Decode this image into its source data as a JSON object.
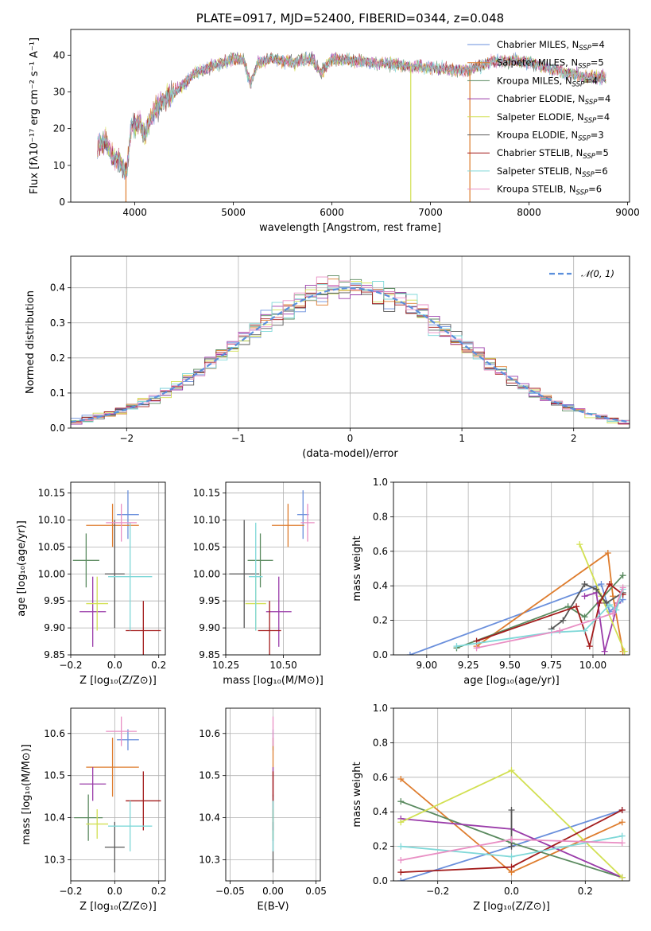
{
  "colors": [
    "#6a8fdc",
    "#de7c2d",
    "#5a8a5f",
    "#9a3ba9",
    "#d2e052",
    "#585858",
    "#a31c1c",
    "#7fd8d8",
    "#e98fc4"
  ],
  "chart_data": [
    {
      "id": "spectrum",
      "type": "line",
      "title": "PLATE=0917, MJD=52400, FIBERID=0344, z=0.048",
      "xlabel": "wavelength [Angstrom, rest frame]",
      "ylabel": "Flux [fλ10⁻¹⁷ erg cm⁻² s⁻¹ A⁻¹]",
      "xlim": [
        3350,
        9020
      ],
      "ylim": [
        0,
        47
      ],
      "xticks": [
        4000,
        5000,
        6000,
        7000,
        8000,
        9000
      ],
      "yticks": [
        0,
        10,
        20,
        30,
        40
      ],
      "legend_position": "top-right",
      "legend": [
        "Chabrier MILES, N_SSP=4",
        "Salpeter MILES, N_SSP=5",
        "Kroupa MILES, N_SSP=4",
        "Chabrier ELODIE, N_SSP=4",
        "Salpeter ELODIE, N_SSP=4",
        "Kroupa ELODIE, N_SSP=3",
        "Chabrier STELIB, N_SSP=5",
        "Salpeter STELIB, N_SSP=6",
        "Kroupa STELIB, N_SSP=6"
      ],
      "legend_base": [
        "Chabrier MILES, N",
        "Salpeter MILES, N",
        "Kroupa MILES, N",
        "Chabrier ELODIE, N",
        "Salpeter ELODIE, N",
        "Kroupa ELODIE, N",
        "Chabrier STELIB, N",
        "Salpeter STELIB, N",
        "Kroupa STELIB, N"
      ],
      "legend_sub": "SSP",
      "legend_n": [
        "=4",
        "=5",
        "=4",
        "=4",
        "=4",
        "=3",
        "=5",
        "=6",
        "=6"
      ],
      "spectrum_points": [
        [
          3620,
          15
        ],
        [
          3700,
          17
        ],
        [
          3780,
          12
        ],
        [
          3850,
          11
        ],
        [
          3920,
          8
        ],
        [
          3960,
          20
        ],
        [
          4050,
          22
        ],
        [
          4100,
          18
        ],
        [
          4200,
          25
        ],
        [
          4300,
          28
        ],
        [
          4400,
          30
        ],
        [
          4500,
          32
        ],
        [
          4600,
          35
        ],
        [
          4700,
          36
        ],
        [
          4800,
          37
        ],
        [
          4900,
          38
        ],
        [
          5000,
          39
        ],
        [
          5100,
          39
        ],
        [
          5175,
          32
        ],
        [
          5250,
          38
        ],
        [
          5400,
          39
        ],
        [
          5600,
          38
        ],
        [
          5800,
          39
        ],
        [
          5890,
          35
        ],
        [
          6000,
          39
        ],
        [
          6200,
          38.5
        ],
        [
          6400,
          38
        ],
        [
          6600,
          37.5
        ],
        [
          6800,
          37
        ],
        [
          7000,
          36.5
        ],
        [
          7200,
          36
        ],
        [
          7400,
          36
        ],
        [
          7600,
          38
        ],
        [
          7800,
          38.5
        ],
        [
          8000,
          38
        ],
        [
          8200,
          36.5
        ],
        [
          8400,
          35
        ],
        [
          8600,
          34
        ],
        [
          8780,
          34
        ]
      ],
      "drops": [
        {
          "x": 3910,
          "color": "#de7c2d"
        },
        {
          "x": 6800,
          "color": "#d2e052"
        },
        {
          "x": 7400,
          "color": "#de7c2d"
        }
      ]
    },
    {
      "id": "residuals",
      "type": "histogram",
      "xlabel": "(data-model)/error",
      "ylabel": "Normed distribution",
      "xlim": [
        -2.5,
        2.5
      ],
      "ylim": [
        0,
        0.49
      ],
      "xticks": [
        -2,
        -1,
        0,
        1,
        2
      ],
      "yticks": [
        0.0,
        0.1,
        0.2,
        0.3,
        0.4
      ],
      "xtick_labels": [
        "−2",
        "−1",
        "0",
        "1",
        "2"
      ],
      "yticks_labels": [
        "0.0",
        "0.1",
        "0.2",
        "0.3",
        "0.4"
      ],
      "bin_width": 0.1,
      "legend_position": "top-right",
      "legend": [
        "𝒩(0, 1)"
      ],
      "gaussian": {
        "mean": 0,
        "sigma": 1,
        "color": "#5b8fdc"
      }
    },
    {
      "id": "age-vs-Z",
      "type": "scatter",
      "xlabel": "Z [log₁₀(Z/Z⊙)]",
      "ylabel": "age  [log₁₀(age/yr)]",
      "xlim": [
        -0.2,
        0.23
      ],
      "ylim": [
        9.85,
        10.17
      ],
      "xticks": [
        -0.2,
        0.0,
        0.2
      ],
      "xtick_labels": [
        "−0.2",
        "0.0",
        "0.2"
      ],
      "yticks": [
        9.85,
        9.9,
        9.95,
        10.0,
        10.05,
        10.1,
        10.15
      ],
      "ytick_labels": [
        "9.85",
        "9.90",
        "9.95",
        "10.00",
        "10.05",
        "10.10",
        "10.15"
      ],
      "points": [
        {
          "x": 0.06,
          "y": 10.11,
          "xerr": 0.05,
          "yerr": 0.045,
          "color": "#6a8fdc"
        },
        {
          "x": -0.01,
          "y": 10.09,
          "xerr": 0.12,
          "yerr": 0.04,
          "color": "#de7c2d"
        },
        {
          "x": -0.13,
          "y": 10.025,
          "xerr": 0.06,
          "yerr": 0.05,
          "color": "#5a8a5f"
        },
        {
          "x": -0.1,
          "y": 9.93,
          "xerr": 0.06,
          "yerr": 0.065,
          "color": "#9a3ba9"
        },
        {
          "x": -0.08,
          "y": 9.945,
          "xerr": 0.05,
          "yerr": 0.05,
          "color": "#d2e052"
        },
        {
          "x": 0.0,
          "y": 10.0,
          "xerr": 0.045,
          "yerr": 0.1,
          "color": "#585858"
        },
        {
          "x": 0.13,
          "y": 9.895,
          "xerr": 0.08,
          "yerr": 0.055,
          "color": "#a31c1c"
        },
        {
          "x": 0.07,
          "y": 9.995,
          "xerr": 0.1,
          "yerr": 0.1,
          "color": "#7fd8d8"
        },
        {
          "x": 0.03,
          "y": 10.095,
          "xerr": 0.07,
          "yerr": 0.035,
          "color": "#e98fc4"
        }
      ]
    },
    {
      "id": "age-vs-mass",
      "type": "scatter",
      "xlabel": "mass [log₁₀(M/M⊙)]",
      "ylabel": "",
      "xlim": [
        10.25,
        10.66
      ],
      "ylim": [
        9.85,
        10.17
      ],
      "xticks": [
        10.25,
        10.5
      ],
      "xtick_labels": [
        "10.25",
        "10.50"
      ],
      "yticks": [
        9.85,
        9.9,
        9.95,
        10.0,
        10.05,
        10.1,
        10.15
      ],
      "ytick_labels": [
        "9.85",
        "9.90",
        "9.95",
        "10.00",
        "10.05",
        "10.10",
        "10.15"
      ],
      "points": [
        {
          "x": 10.585,
          "y": 10.11,
          "xerr": 0.025,
          "yerr": 0.045,
          "color": "#6a8fdc"
        },
        {
          "x": 10.52,
          "y": 10.09,
          "xerr": 0.07,
          "yerr": 0.04,
          "color": "#de7c2d"
        },
        {
          "x": 10.4,
          "y": 10.025,
          "xerr": 0.055,
          "yerr": 0.05,
          "color": "#5a8a5f"
        },
        {
          "x": 10.48,
          "y": 9.93,
          "xerr": 0.055,
          "yerr": 0.065,
          "color": "#9a3ba9"
        },
        {
          "x": 10.38,
          "y": 9.945,
          "xerr": 0.045,
          "yerr": 0.05,
          "color": "#d2e052"
        },
        {
          "x": 10.33,
          "y": 10.0,
          "xerr": 0.065,
          "yerr": 0.1,
          "color": "#585858"
        },
        {
          "x": 10.44,
          "y": 9.895,
          "xerr": 0.05,
          "yerr": 0.055,
          "color": "#a31c1c"
        },
        {
          "x": 10.38,
          "y": 9.995,
          "xerr": 0.03,
          "yerr": 0.1,
          "color": "#7fd8d8"
        },
        {
          "x": 10.605,
          "y": 10.095,
          "xerr": 0.03,
          "yerr": 0.035,
          "color": "#e98fc4"
        }
      ]
    },
    {
      "id": "weight-vs-age",
      "type": "line",
      "xlabel": "age  [log₁₀(age/yr)]",
      "ylabel": "mass weight",
      "xlim": [
        8.8,
        10.22
      ],
      "ylim": [
        0,
        1
      ],
      "xticks": [
        9.0,
        9.25,
        9.5,
        9.75,
        10.0
      ],
      "xtick_labels": [
        "9.00",
        "9.25",
        "9.50",
        "9.75",
        "10.00"
      ],
      "yticks": [
        0.0,
        0.2,
        0.4,
        0.6,
        0.8,
        1.0
      ],
      "ytick_labels": [
        "0.0",
        "0.2",
        "0.4",
        "0.6",
        "0.8",
        "1.0"
      ],
      "series": [
        {
          "color": "#6a8fdc",
          "x": [
            8.9,
            10.05,
            10.1,
            10.18
          ],
          "y": [
            0.0,
            0.41,
            0.25,
            0.32
          ]
        },
        {
          "color": "#de7c2d",
          "x": [
            9.3,
            10.09,
            10.12,
            10.18
          ],
          "y": [
            0.05,
            0.59,
            0.34,
            0.02
          ]
        },
        {
          "color": "#5a8a5f",
          "x": [
            9.18,
            9.85,
            9.95,
            10.18
          ],
          "y": [
            0.04,
            0.28,
            0.22,
            0.46
          ]
        },
        {
          "color": "#9a3ba9",
          "x": [
            9.95,
            10.02,
            10.07,
            10.15
          ],
          "y": [
            0.34,
            0.36,
            0.02,
            0.3
          ]
        },
        {
          "color": "#d2e052",
          "x": [
            9.92,
            10.05,
            10.19
          ],
          "y": [
            0.64,
            0.34,
            0.02
          ]
        },
        {
          "color": "#585858",
          "x": [
            9.75,
            9.82,
            9.95,
            10.02,
            10.08,
            10.18
          ],
          "y": [
            0.15,
            0.2,
            0.41,
            0.38,
            0.3,
            0.36
          ]
        },
        {
          "color": "#a31c1c",
          "x": [
            9.3,
            9.9,
            9.98,
            10.04,
            10.1,
            10.18
          ],
          "y": [
            0.08,
            0.28,
            0.05,
            0.3,
            0.41,
            0.35
          ]
        },
        {
          "color": "#7fd8d8",
          "x": [
            9.18,
            9.75,
            9.95,
            10.1,
            10.14,
            10.18
          ],
          "y": [
            0.05,
            0.13,
            0.14,
            0.29,
            0.26,
            0.38
          ]
        },
        {
          "color": "#e98fc4",
          "x": [
            9.3,
            9.8,
            10.12,
            10.18
          ],
          "y": [
            0.04,
            0.14,
            0.24,
            0.39
          ]
        }
      ]
    },
    {
      "id": "mass-vs-Z",
      "type": "scatter",
      "xlabel": "Z [log₁₀(Z/Z⊙)]",
      "ylabel": "mass [log₁₀(M/M⊙)]",
      "xlim": [
        -0.2,
        0.23
      ],
      "ylim": [
        10.25,
        10.66
      ],
      "xticks": [
        -0.2,
        0.0,
        0.2
      ],
      "xtick_labels": [
        "−0.2",
        "0.0",
        "0.2"
      ],
      "yticks": [
        10.3,
        10.4,
        10.5,
        10.6
      ],
      "ytick_labels": [
        "10.3",
        "10.4",
        "10.5",
        "10.6"
      ],
      "points": [
        {
          "x": 0.06,
          "y": 10.585,
          "xerr": 0.05,
          "yerr": 0.025,
          "color": "#6a8fdc"
        },
        {
          "x": -0.01,
          "y": 10.52,
          "xerr": 0.12,
          "yerr": 0.07,
          "color": "#de7c2d"
        },
        {
          "x": -0.12,
          "y": 10.4,
          "xerr": 0.065,
          "yerr": 0.055,
          "color": "#5a8a5f"
        },
        {
          "x": -0.1,
          "y": 10.48,
          "xerr": 0.06,
          "yerr": 0.04,
          "color": "#9a3ba9"
        },
        {
          "x": -0.08,
          "y": 10.385,
          "xerr": 0.05,
          "yerr": 0.035,
          "color": "#d2e052"
        },
        {
          "x": 0.0,
          "y": 10.33,
          "xerr": 0.045,
          "yerr": 0.06,
          "color": "#585858"
        },
        {
          "x": 0.13,
          "y": 10.44,
          "xerr": 0.08,
          "yerr": 0.07,
          "color": "#a31c1c"
        },
        {
          "x": 0.07,
          "y": 10.38,
          "xerr": 0.1,
          "yerr": 0.06,
          "color": "#7fd8d8"
        },
        {
          "x": 0.03,
          "y": 10.605,
          "xerr": 0.07,
          "yerr": 0.035,
          "color": "#e98fc4"
        }
      ]
    },
    {
      "id": "mass-vs-EBV",
      "type": "scatter",
      "xlabel": "E(B-V)",
      "ylabel": "",
      "xlim": [
        -0.055,
        0.055
      ],
      "ylim": [
        10.25,
        10.66
      ],
      "xticks": [
        -0.05,
        0.0,
        0.05
      ],
      "xtick_labels": [
        "−0.05",
        "0.00",
        "0.05"
      ],
      "yticks": [
        10.3,
        10.4,
        10.5,
        10.6
      ],
      "ytick_labels": [
        "10.3",
        "10.4",
        "10.5",
        "10.6"
      ],
      "points": [
        {
          "x": 0.0,
          "y": 10.585,
          "xerr": 0,
          "yerr": 0.025,
          "color": "#6a8fdc"
        },
        {
          "x": 0.0,
          "y": 10.52,
          "xerr": 0,
          "yerr": 0.07,
          "color": "#de7c2d"
        },
        {
          "x": 0.0,
          "y": 10.4,
          "xerr": 0,
          "yerr": 0.055,
          "color": "#5a8a5f"
        },
        {
          "x": 0.0,
          "y": 10.48,
          "xerr": 0,
          "yerr": 0.04,
          "color": "#9a3ba9"
        },
        {
          "x": 0.0,
          "y": 10.385,
          "xerr": 0,
          "yerr": 0.035,
          "color": "#d2e052"
        },
        {
          "x": 0.0,
          "y": 10.33,
          "xerr": 0,
          "yerr": 0.06,
          "color": "#585858"
        },
        {
          "x": 0.0,
          "y": 10.44,
          "xerr": 0,
          "yerr": 0.07,
          "color": "#a31c1c"
        },
        {
          "x": 0.0,
          "y": 10.38,
          "xerr": 0,
          "yerr": 0.06,
          "color": "#7fd8d8"
        },
        {
          "x": 0.0,
          "y": 10.605,
          "xerr": 0,
          "yerr": 0.035,
          "color": "#e98fc4"
        }
      ]
    },
    {
      "id": "weight-vs-Z",
      "type": "line",
      "xlabel": "Z [log₁₀(Z/Z⊙)]",
      "ylabel": "mass weight",
      "xlim": [
        -0.32,
        0.32
      ],
      "ylim": [
        0,
        1
      ],
      "xticks": [
        -0.2,
        0.0,
        0.2
      ],
      "xtick_labels": [
        "−0.2",
        "0.0",
        "0.2"
      ],
      "yticks": [
        0.0,
        0.2,
        0.4,
        0.6,
        0.8,
        1.0
      ],
      "ytick_labels": [
        "0.0",
        "0.2",
        "0.4",
        "0.6",
        "0.8",
        "1.0"
      ],
      "series": [
        {
          "color": "#6a8fdc",
          "x": [
            -0.3,
            0.0,
            0.3
          ],
          "y": [
            0.0,
            0.2,
            0.41
          ]
        },
        {
          "color": "#de7c2d",
          "x": [
            -0.3,
            0.0,
            0.3
          ],
          "y": [
            0.59,
            0.05,
            0.34
          ]
        },
        {
          "color": "#5a8a5f",
          "x": [
            -0.3,
            0.0,
            0.3
          ],
          "y": [
            0.46,
            0.22,
            0.02
          ]
        },
        {
          "color": "#9a3ba9",
          "x": [
            -0.3,
            0.0,
            0.3
          ],
          "y": [
            0.36,
            0.3,
            0.02
          ]
        },
        {
          "color": "#d2e052",
          "x": [
            -0.3,
            0.0,
            0.3
          ],
          "y": [
            0.34,
            0.64,
            0.02
          ]
        },
        {
          "color": "#585858",
          "x": [
            0.0,
            0.0
          ],
          "y": [
            0.41,
            0.2
          ]
        },
        {
          "color": "#a31c1c",
          "x": [
            -0.3,
            0.0,
            0.3
          ],
          "y": [
            0.05,
            0.08,
            0.41
          ]
        },
        {
          "color": "#7fd8d8",
          "x": [
            -0.3,
            0.0,
            0.3
          ],
          "y": [
            0.2,
            0.14,
            0.26
          ]
        },
        {
          "color": "#e98fc4",
          "x": [
            -0.3,
            0.0,
            0.3
          ],
          "y": [
            0.12,
            0.24,
            0.22
          ]
        }
      ]
    }
  ]
}
